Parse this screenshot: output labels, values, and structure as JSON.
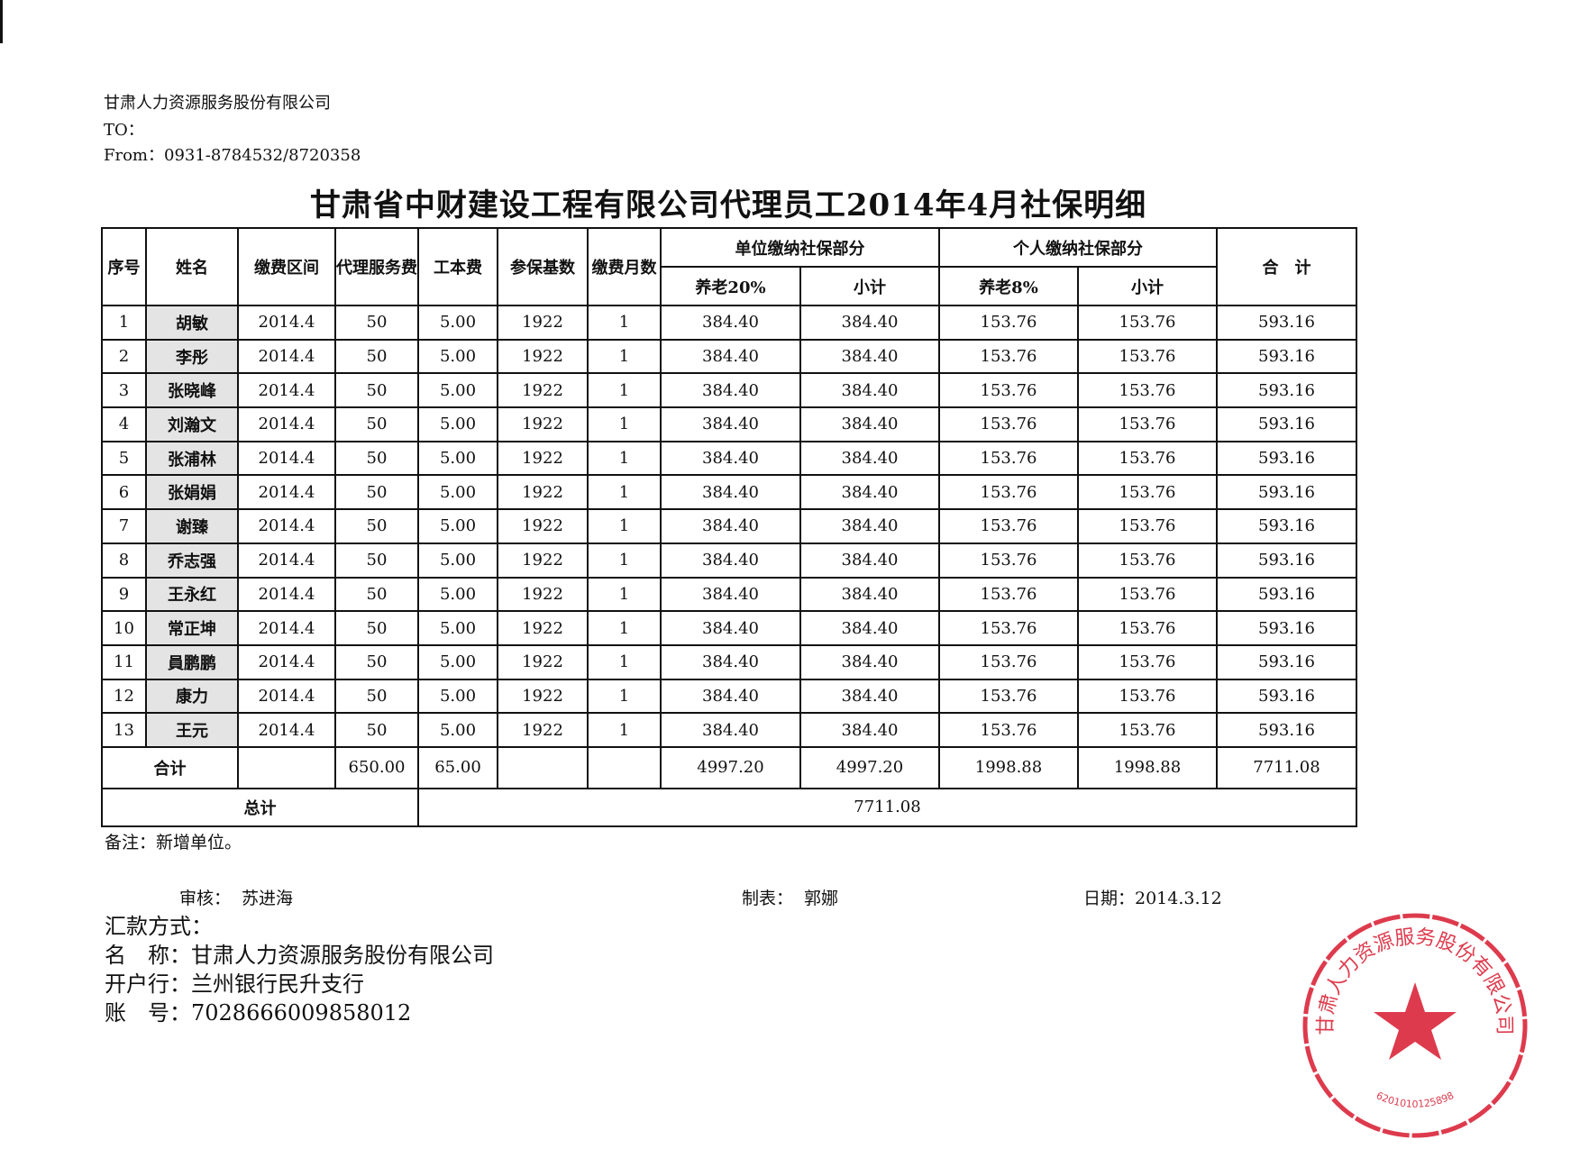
{
  "header": {
    "company": "甘肃人力资源服务股份有限公司",
    "to": "TO：",
    "from": "From：0931-8784532/8720358"
  },
  "title": "甘肃省中财建设工程有限公司代理员工2014年4月社保明细",
  "table": {
    "headers": {
      "seq": "序号",
      "name": "姓名",
      "period": "缴费区间",
      "agency_fee": "代理服务费",
      "cost": "工本费",
      "base": "参保基数",
      "months": "缴费月数",
      "unit_group": "单位缴纳社保部分",
      "unit_pension": "养老20%",
      "unit_subtotal": "小计",
      "personal_group": "个人缴纳社保部分",
      "personal_pension": "养老8%",
      "personal_subtotal": "小计",
      "total": "合　计"
    },
    "rows": [
      [
        "1",
        "胡敏",
        "2014.4",
        "50",
        "5.00",
        "1922",
        "1",
        "384.40",
        "384.40",
        "153.76",
        "153.76",
        "593.16"
      ],
      [
        "2",
        "李彤",
        "2014.4",
        "50",
        "5.00",
        "1922",
        "1",
        "384.40",
        "384.40",
        "153.76",
        "153.76",
        "593.16"
      ],
      [
        "3",
        "张晓峰",
        "2014.4",
        "50",
        "5.00",
        "1922",
        "1",
        "384.40",
        "384.40",
        "153.76",
        "153.76",
        "593.16"
      ],
      [
        "4",
        "刘瀚文",
        "2014.4",
        "50",
        "5.00",
        "1922",
        "1",
        "384.40",
        "384.40",
        "153.76",
        "153.76",
        "593.16"
      ],
      [
        "5",
        "张浦林",
        "2014.4",
        "50",
        "5.00",
        "1922",
        "1",
        "384.40",
        "384.40",
        "153.76",
        "153.76",
        "593.16"
      ],
      [
        "6",
        "张娟娟",
        "2014.4",
        "50",
        "5.00",
        "1922",
        "1",
        "384.40",
        "384.40",
        "153.76",
        "153.76",
        "593.16"
      ],
      [
        "7",
        "谢臻",
        "2014.4",
        "50",
        "5.00",
        "1922",
        "1",
        "384.40",
        "384.40",
        "153.76",
        "153.76",
        "593.16"
      ],
      [
        "8",
        "乔志强",
        "2014.4",
        "50",
        "5.00",
        "1922",
        "1",
        "384.40",
        "384.40",
        "153.76",
        "153.76",
        "593.16"
      ],
      [
        "9",
        "王永红",
        "2014.4",
        "50",
        "5.00",
        "1922",
        "1",
        "384.40",
        "384.40",
        "153.76",
        "153.76",
        "593.16"
      ],
      [
        "10",
        "常正坤",
        "2014.4",
        "50",
        "5.00",
        "1922",
        "1",
        "384.40",
        "384.40",
        "153.76",
        "153.76",
        "593.16"
      ],
      [
        "11",
        "員鹏鹏",
        "2014.4",
        "50",
        "5.00",
        "1922",
        "1",
        "384.40",
        "384.40",
        "153.76",
        "153.76",
        "593.16"
      ],
      [
        "12",
        "康力",
        "2014.4",
        "50",
        "5.00",
        "1922",
        "1",
        "384.40",
        "384.40",
        "153.76",
        "153.76",
        "593.16"
      ],
      [
        "13",
        "王元",
        "2014.4",
        "50",
        "5.00",
        "1922",
        "1",
        "384.40",
        "384.40",
        "153.76",
        "153.76",
        "593.16"
      ]
    ],
    "subtotal": {
      "label": "合计",
      "agency_fee": "650.00",
      "cost": "65.00",
      "unit_pension": "4997.20",
      "unit_subtotal": "4997.20",
      "personal_pension": "1998.88",
      "personal_subtotal": "1998.88",
      "total": "7711.08"
    },
    "grand_total": {
      "label": "总计",
      "value": "7711.08"
    }
  },
  "remark": "备注：新增单位。",
  "signatures": {
    "reviewer_label": "审核：",
    "reviewer": "苏进海",
    "preparer_label": "制表：",
    "preparer": "郭娜",
    "date": "日期：2014.3.12"
  },
  "payment": {
    "heading": "汇款方式：",
    "name": "名　称：甘肃人力资源服务股份有限公司",
    "bank": "开户行：兰州银行民升支行",
    "account": "账　号：7028666009858012"
  },
  "stamp": {
    "color": "#d8192e",
    "text": "甘肃人力资源服务股份有限公司",
    "number": "6201010125898"
  }
}
